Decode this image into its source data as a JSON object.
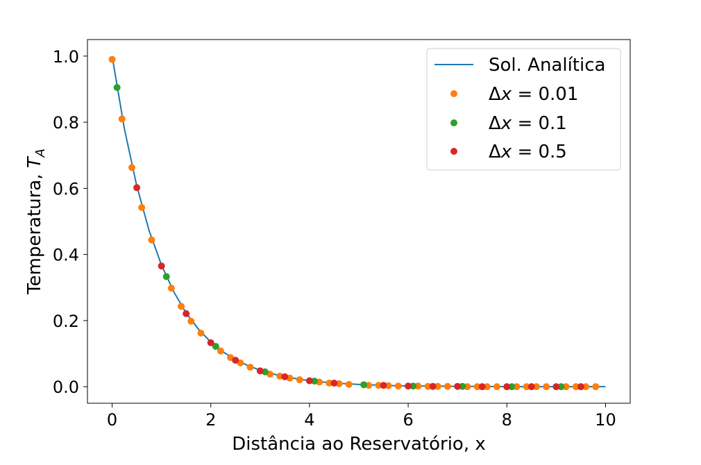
{
  "chart_data": {
    "type": "scatter",
    "title": "",
    "xlabel": "Distância ao Reservatório, x",
    "ylabel_main": "Temperatura, ",
    "ylabel_var": "T",
    "ylabel_sub": "A",
    "xlim": [
      -0.5,
      10.5
    ],
    "ylim": [
      -0.05,
      1.05
    ],
    "xticks": [
      0,
      2,
      4,
      6,
      8,
      10
    ],
    "xtick_labels": [
      "0",
      "2",
      "4",
      "6",
      "8",
      "10"
    ],
    "yticks": [
      0.0,
      0.2,
      0.4,
      0.6,
      0.8,
      1.0
    ],
    "ytick_labels": [
      "0.0",
      "0.2",
      "0.4",
      "0.6",
      "0.8",
      "1.0"
    ],
    "grid": false,
    "legend_position": "top-right",
    "analytic": {
      "label": "Sol. Analítica",
      "color": "#1f77b4",
      "x": [
        0,
        0.25,
        0.5,
        0.75,
        1,
        1.25,
        1.5,
        1.75,
        2,
        2.25,
        2.5,
        2.75,
        3,
        3.25,
        3.5,
        3.75,
        4,
        4.5,
        5,
        5.5,
        6,
        6.5,
        7,
        7.5,
        8,
        8.5,
        9,
        9.5,
        10
      ],
      "y": [
        1.0,
        0.779,
        0.607,
        0.472,
        0.368,
        0.287,
        0.223,
        0.174,
        0.135,
        0.105,
        0.082,
        0.064,
        0.05,
        0.039,
        0.03,
        0.024,
        0.018,
        0.011,
        0.007,
        0.004,
        0.002,
        0.002,
        0.001,
        0.001,
        0.0,
        0.0,
        0.0,
        0.0,
        0.0
      ]
    },
    "series": [
      {
        "legend_prefix": "Δ",
        "legend_var": "x",
        "legend_suffix": " = 0.01",
        "color": "#ff7f0e",
        "x": [
          0.0,
          0.2,
          0.4,
          0.6,
          0.8,
          1.2,
          1.4,
          1.6,
          1.8,
          2.2,
          2.4,
          2.6,
          2.8,
          3.2,
          3.4,
          3.6,
          3.8,
          4.2,
          4.4,
          4.6,
          4.8,
          5.2,
          5.4,
          5.6,
          5.8,
          6.2,
          6.4,
          6.6,
          6.8,
          7.2,
          7.4,
          7.6,
          7.8,
          8.2,
          8.4,
          8.6,
          8.8,
          9.2,
          9.4,
          9.6,
          9.8
        ],
        "y": [
          0.99,
          0.81,
          0.663,
          0.542,
          0.444,
          0.298,
          0.243,
          0.198,
          0.162,
          0.108,
          0.088,
          0.072,
          0.059,
          0.038,
          0.032,
          0.026,
          0.021,
          0.014,
          0.011,
          0.009,
          0.007,
          0.004,
          0.004,
          0.003,
          0.002,
          0.002,
          0.001,
          0.001,
          0.001,
          0.0,
          0.0,
          0.0,
          0.0,
          0.0,
          0.0,
          0.0,
          0.0,
          0.0,
          0.0,
          0.0,
          0.0
        ]
      },
      {
        "legend_prefix": "Δ",
        "legend_var": "x",
        "legend_suffix": " = 0.1",
        "color": "#2ca02c",
        "x": [
          0.1,
          1.1,
          2.1,
          3.1,
          4.1,
          5.1,
          6.1,
          7.1,
          8.1,
          9.1
        ],
        "y": [
          0.905,
          0.333,
          0.122,
          0.045,
          0.017,
          0.006,
          0.002,
          0.001,
          0.0,
          0.0
        ]
      },
      {
        "legend_prefix": "Δ",
        "legend_var": "x",
        "legend_suffix": " = 0.5",
        "color": "#d62728",
        "x": [
          0.5,
          1.0,
          1.5,
          2.0,
          2.5,
          3.0,
          3.5,
          4.0,
          4.5,
          5.5,
          6.0,
          6.5,
          7.0,
          7.5,
          8.0,
          8.5,
          9.0,
          9.5
        ],
        "y": [
          0.602,
          0.365,
          0.221,
          0.133,
          0.08,
          0.048,
          0.03,
          0.018,
          0.011,
          0.004,
          0.002,
          0.001,
          0.001,
          0.0,
          0.0,
          0.0,
          0.0,
          0.0
        ]
      }
    ]
  }
}
